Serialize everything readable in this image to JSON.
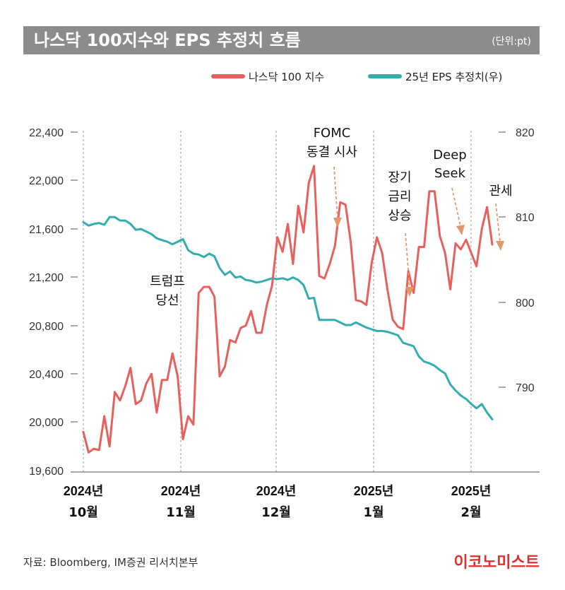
{
  "header": {
    "title": "나스닥 100지수와 EPS 추정치 흐름",
    "unit": "(단위:pt)"
  },
  "colors": {
    "nasdaq": "#e8605c",
    "eps": "#34aeac",
    "arrow": "#e09a6a",
    "title_bg": "#8c8c8c",
    "brand": "#d8322f"
  },
  "chart_data": {
    "type": "line",
    "series": [
      {
        "name": "나스닥 100 지수",
        "axis": "left",
        "values": [
          19920,
          19750,
          19780,
          19770,
          20050,
          19800,
          20250,
          20180,
          20300,
          20450,
          20150,
          20180,
          20320,
          20400,
          20080,
          20350,
          20350,
          20570,
          20380,
          19860,
          20050,
          19980,
          21070,
          21120,
          21120,
          21040,
          20380,
          20460,
          20680,
          20660,
          20780,
          20800,
          20920,
          20740,
          20740,
          20970,
          21130,
          21530,
          21410,
          21640,
          21310,
          21790,
          21570,
          21980,
          22120,
          21210,
          21190,
          21310,
          21460,
          21820,
          21800,
          21490,
          21010,
          21000,
          20970,
          21320,
          21530,
          21400,
          21100,
          20850,
          20790,
          20770,
          21250,
          21070,
          21450,
          21450,
          21910,
          21910,
          21540,
          21400,
          21100,
          21480,
          21430,
          21510,
          21400,
          21290,
          21600,
          21780,
          21470
        ]
      },
      {
        "name": "25년 EPS 추정치(우)",
        "axis": "right",
        "values": [
          809.4,
          809.0,
          809.2,
          809.3,
          809.1,
          810.0,
          810.0,
          809.6,
          809.6,
          809.2,
          808.5,
          808.6,
          808.3,
          808.0,
          807.5,
          807.3,
          807.1,
          806.8,
          807.1,
          807.4,
          806.1,
          805.7,
          805.6,
          805.3,
          805.7,
          805.4,
          804.0,
          803.2,
          803.6,
          802.9,
          803.0,
          802.6,
          802.5,
          802.3,
          802.4,
          802.6,
          802.8,
          802.7,
          802.8,
          802.6,
          802.9,
          802.6,
          802.0,
          800.4,
          800.5,
          797.9,
          797.9,
          797.9,
          797.9,
          797.6,
          797.3,
          797.3,
          797.6,
          797.3,
          797.0,
          796.8,
          796.6,
          796.6,
          796.5,
          796.3,
          796.1,
          795.2,
          795.0,
          794.8,
          793.6,
          793.0,
          792.8,
          792.5,
          792.0,
          791.6,
          790.3,
          789.6,
          789.0,
          788.6,
          788.0,
          787.5,
          788.0,
          787.0,
          786.2
        ]
      }
    ],
    "x_labels": [
      {
        "year": "2024",
        "suffix": "년",
        "month": "10월"
      },
      {
        "year": "2024",
        "suffix": "년",
        "month": "11월"
      },
      {
        "year": "2024",
        "suffix": "년",
        "month": "12월"
      },
      {
        "year": "2025",
        "suffix": "년",
        "month": "1월"
      },
      {
        "year": "2025",
        "suffix": "년",
        "month": "2월"
      }
    ],
    "y_left": {
      "ticks": [
        "22,400",
        "22,000",
        "21,600",
        "21,200",
        "20,800",
        "20,400",
        "20,000",
        "19,600"
      ],
      "range": [
        19600,
        22400
      ]
    },
    "y_right": {
      "ticks": [
        "820",
        "810",
        "800",
        "790"
      ],
      "range": [
        780,
        820
      ]
    },
    "annotations": {
      "trump": [
        "트럼프",
        "당선"
      ],
      "fomc": [
        "FOMC",
        "동결 시사"
      ],
      "long_rate": [
        "장기",
        "금리",
        "상승"
      ],
      "deepseek": [
        "Deep",
        "Seek"
      ],
      "tariff": [
        "관세"
      ]
    }
  },
  "footer": {
    "source": "자료: Bloomberg, IM증권 리서치본부",
    "brand": "이코노미스트"
  }
}
